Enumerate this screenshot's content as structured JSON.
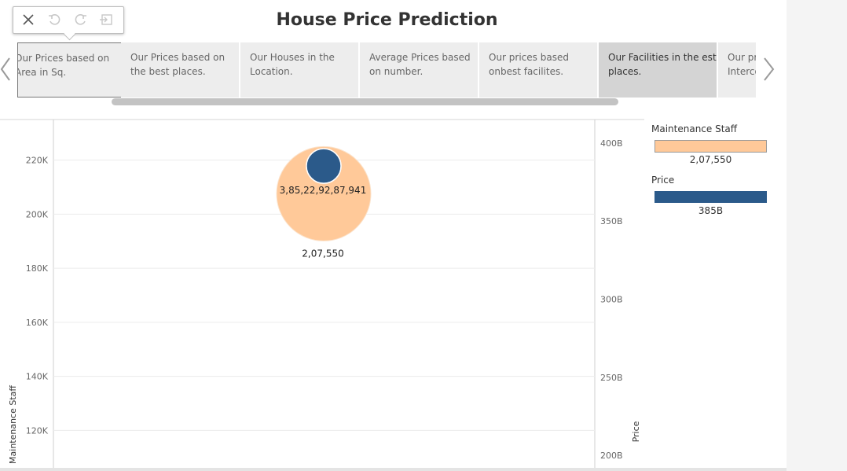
{
  "page": {
    "title": "House Price Prediction"
  },
  "toolbar": {
    "buttons": [
      {
        "name": "close-icon",
        "glyph": "✕"
      },
      {
        "name": "undo-icon",
        "glyph": "↺"
      },
      {
        "name": "redo-icon",
        "glyph": "↻"
      },
      {
        "name": "revert-icon",
        "glyph": "⇤"
      }
    ]
  },
  "story": {
    "tabs": [
      {
        "label": "Our Prices based on\nArea in Sq.",
        "state": "current"
      },
      {
        "label": "Our Prices based on\nthe best places.",
        "state": "normal"
      },
      {
        "label": "Our Houses in the\nLocation.",
        "state": "normal"
      },
      {
        "label": "Average Prices based\non number.",
        "state": "normal"
      },
      {
        "label": "Our prices based\nonbest facilites.",
        "state": "normal"
      },
      {
        "label": "Our Facilities in the est\nplaces.",
        "state": "active"
      },
      {
        "label": "Our prices based on\nIntercom",
        "state": "normal"
      }
    ]
  },
  "legend": {
    "maintenance": {
      "title": "Maintenance Staff",
      "value": "2,07,550",
      "color": "#ffc999"
    },
    "price": {
      "title": "Price",
      "value": "385B",
      "color": "#2b5a8a"
    }
  },
  "chart_data": {
    "type": "scatter",
    "yleft": {
      "label": "Maintenance Staff",
      "ticks": [
        120000,
        140000,
        160000,
        180000,
        200000,
        220000
      ],
      "tick_labels": [
        "120K",
        "140K",
        "160K",
        "180K",
        "200K",
        "220K"
      ],
      "range": [
        105000,
        235000
      ]
    },
    "yright": {
      "label": "Price",
      "ticks": [
        200,
        250,
        300,
        350,
        400
      ],
      "tick_labels": [
        "200B",
        "250B",
        "300B",
        "350B",
        "400B"
      ],
      "range": [
        190,
        415
      ]
    },
    "series": [
      {
        "name": "Maintenance Staff",
        "axis": "left",
        "value": 207550,
        "label": "2,07,550",
        "color": "#ffc999"
      },
      {
        "name": "Price",
        "axis": "right",
        "value": 385.2293,
        "label": "3,85,22,92,87,941",
        "color": "#2b5a8a"
      }
    ],
    "grid": true
  }
}
